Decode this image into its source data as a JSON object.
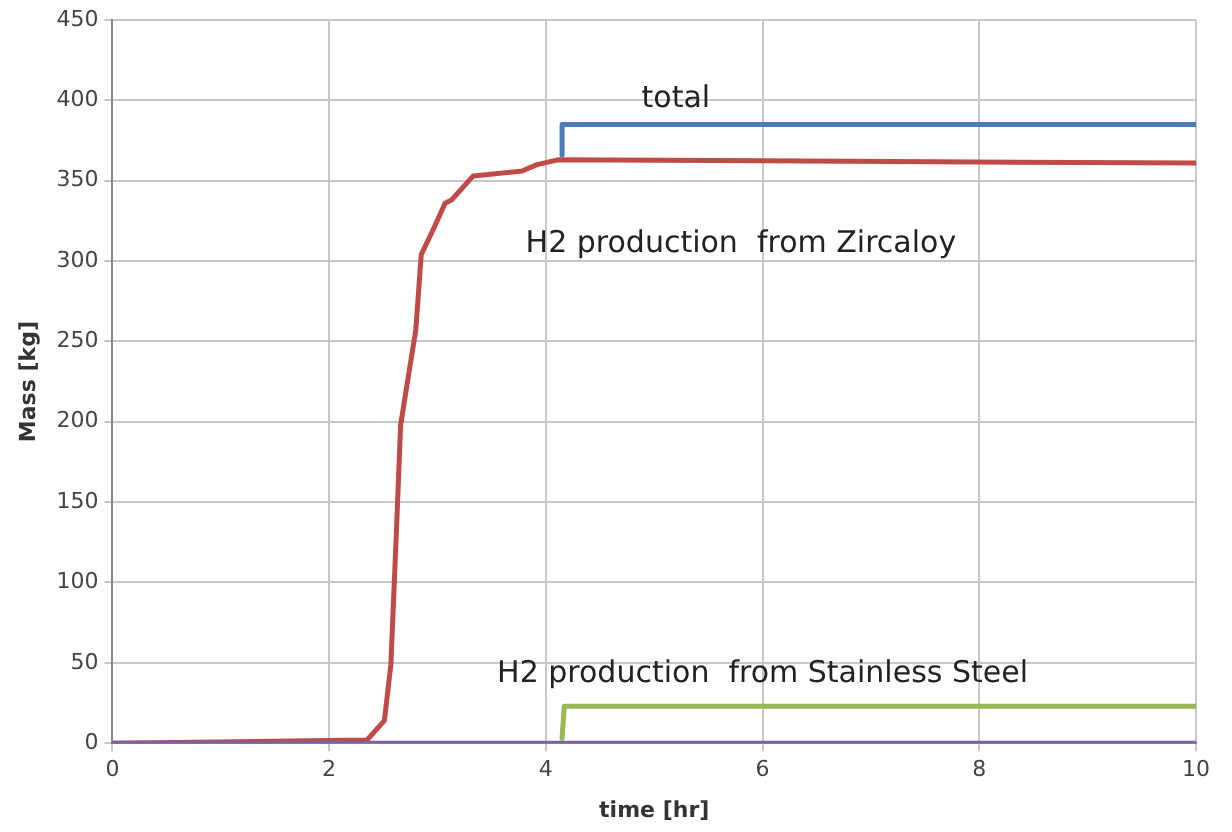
{
  "chart_data": {
    "type": "line",
    "xlabel": "time [hr]",
    "ylabel": "Mass [kg]",
    "xlim": [
      0,
      10
    ],
    "xticks": [
      0,
      2,
      4,
      6,
      8,
      10
    ],
    "ylim": [
      0,
      450
    ],
    "yticks": [
      0,
      50,
      100,
      150,
      200,
      250,
      300,
      350,
      400,
      450
    ],
    "grid": true,
    "legend": false,
    "marker": "none",
    "line_style": "solid",
    "series": [
      {
        "name": "total",
        "color": "#4a7ebb",
        "x": [
          4.15,
          4.15,
          10
        ],
        "values": [
          366,
          385,
          385
        ]
      },
      {
        "name": "H2 production  from Zircaloy",
        "color": "#be4b48",
        "x": [
          0,
          2.35,
          2.51,
          2.57,
          2.62,
          2.66,
          2.74,
          2.8,
          2.85,
          2.97,
          3.07,
          3.13,
          3.33,
          3.78,
          3.92,
          4.11,
          10
        ],
        "values": [
          0,
          2,
          14,
          49,
          130,
          198,
          232,
          257,
          304,
          321,
          336,
          338,
          353,
          356,
          360,
          363,
          361
        ]
      },
      {
        "name": "H2 production  from Stainless Steel",
        "color": "#98b954",
        "x": [
          4.15,
          4.17,
          10
        ],
        "values": [
          3,
          23,
          23
        ]
      },
      {
        "color": "#7d60a0",
        "x": [
          0,
          10
        ],
        "values": [
          0,
          0
        ]
      }
    ]
  }
}
